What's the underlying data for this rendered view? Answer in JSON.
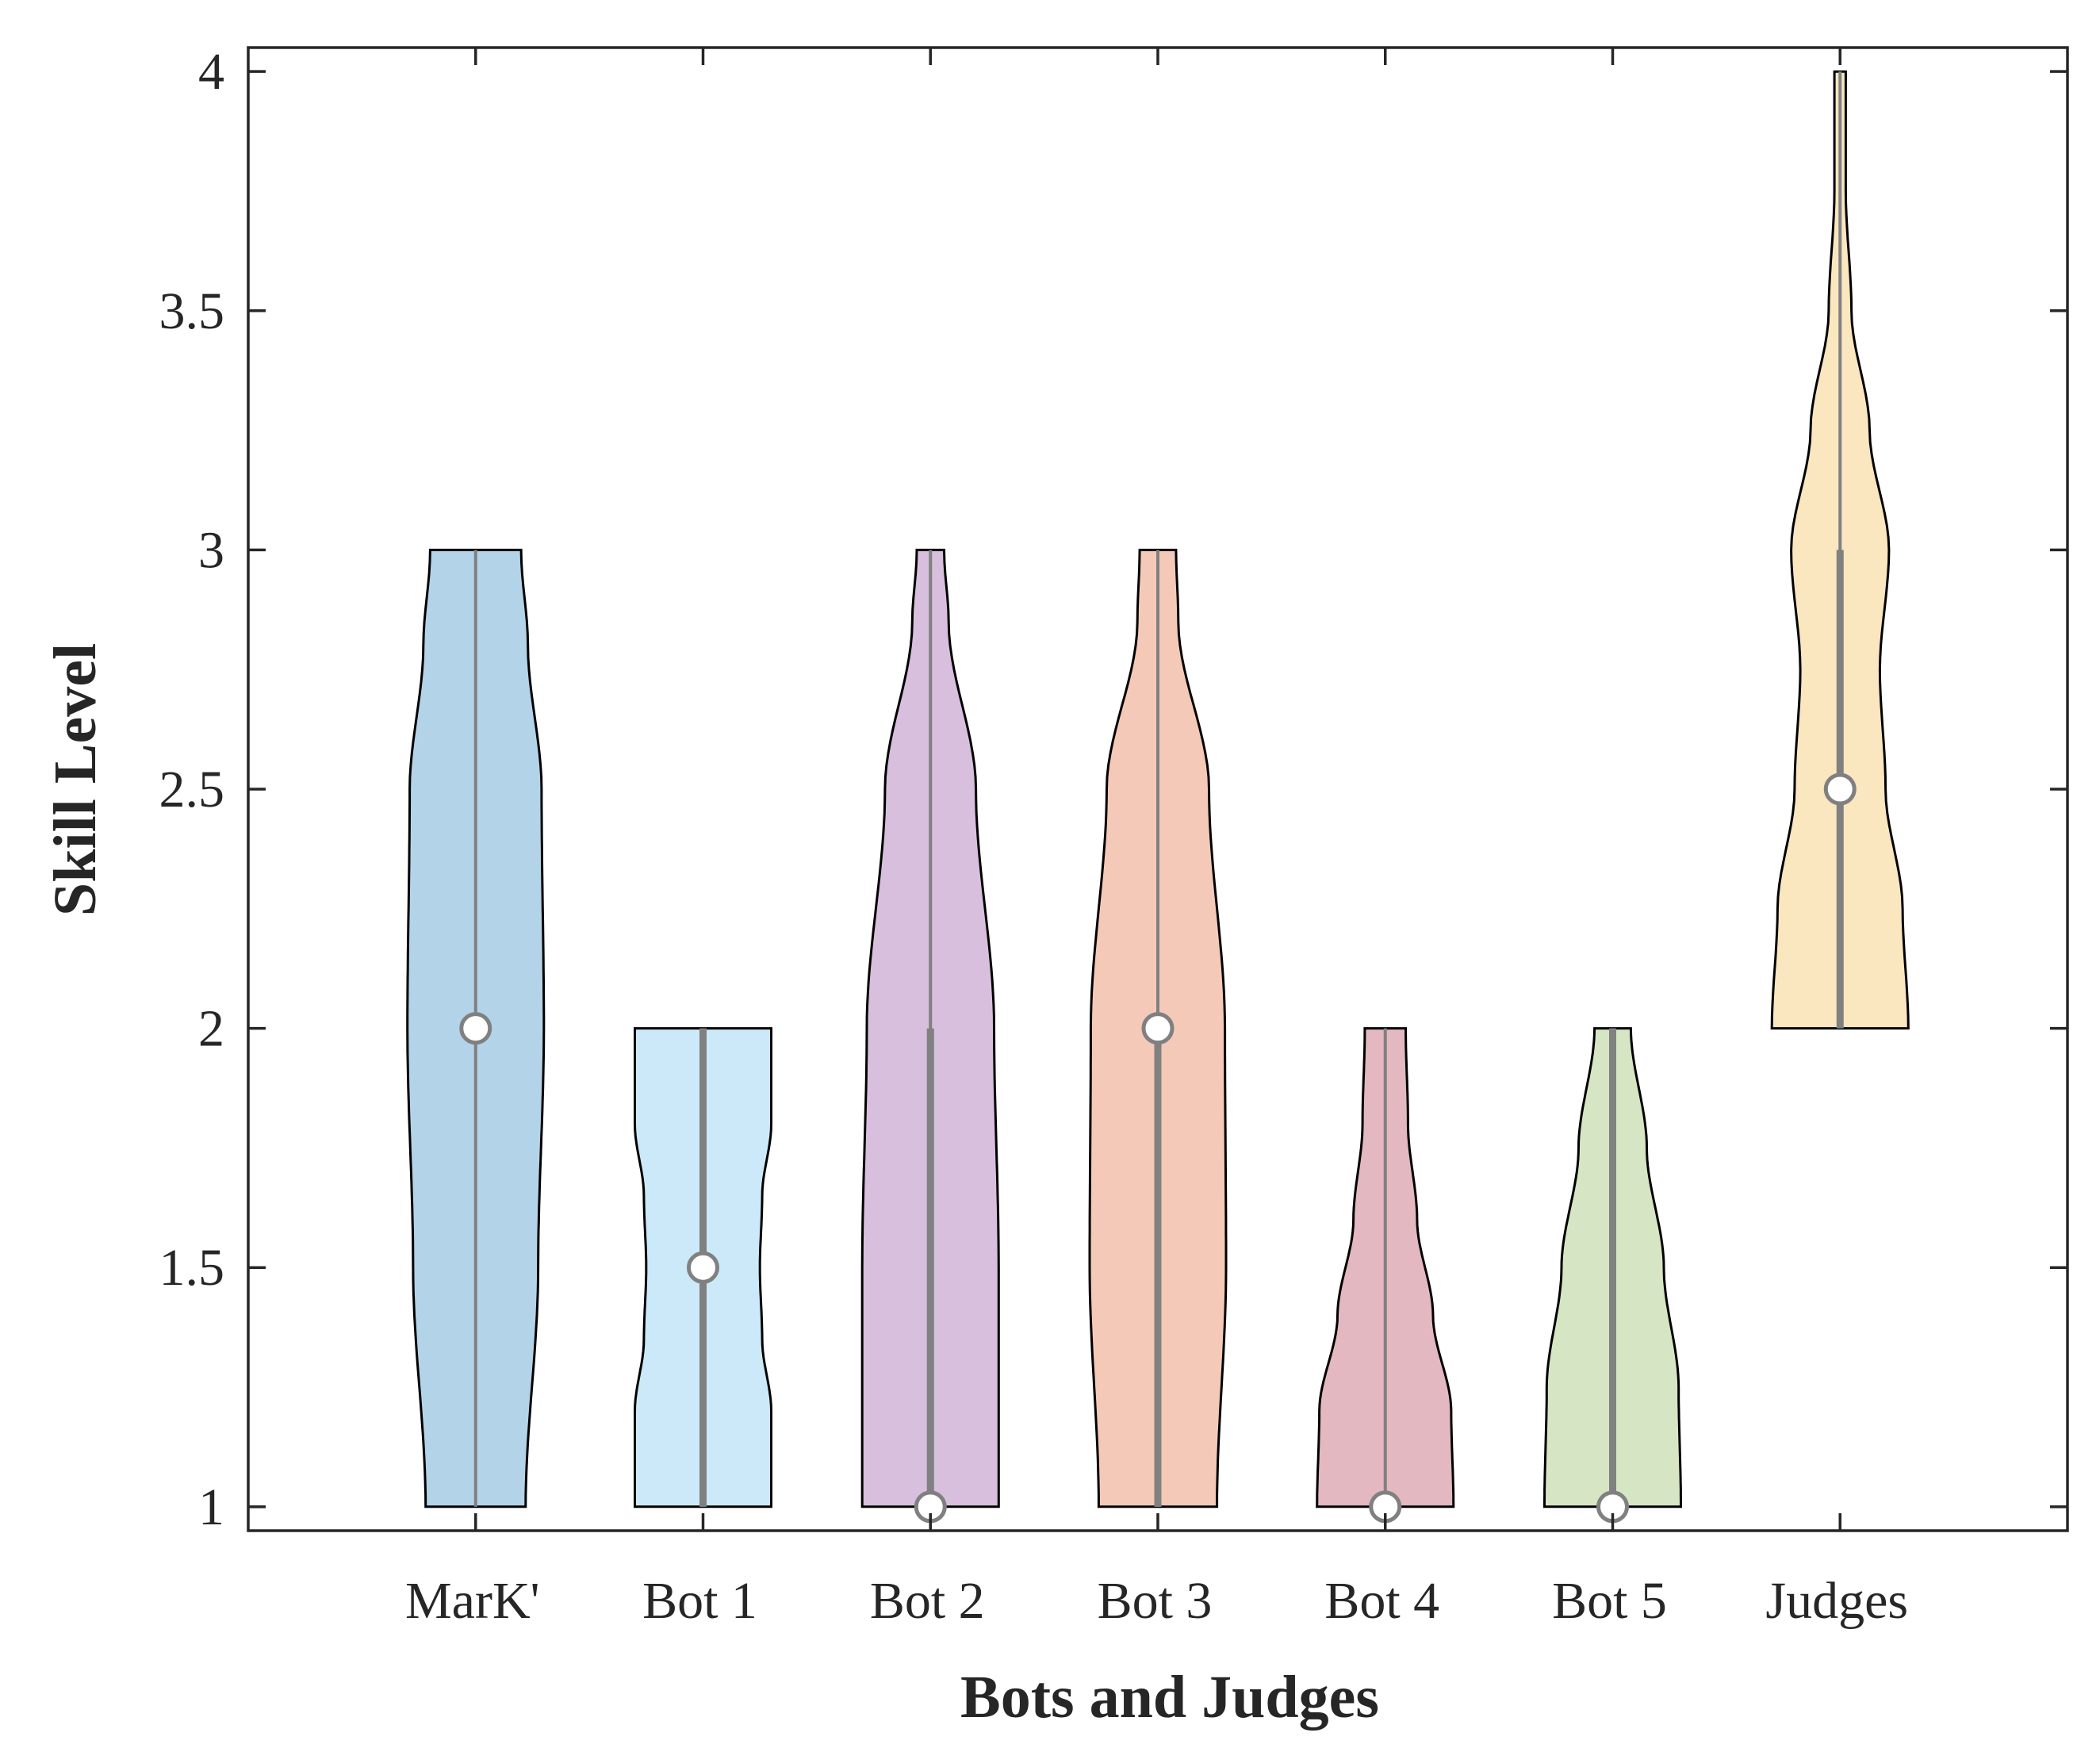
{
  "chart_data": {
    "type": "violin",
    "title": "",
    "xlabel": "Bots and Judges",
    "ylabel": "Skill Level",
    "ylim": [
      0.95,
      4.05
    ],
    "yticks": [
      1,
      1.5,
      2,
      2.5,
      3,
      3.5,
      4
    ],
    "ytick_labels": [
      "1",
      "1.5",
      "2",
      "2.5",
      "3",
      "3.5",
      "4"
    ],
    "grid": false,
    "legend": "none",
    "categories": [
      "MarK'",
      "Bot 1",
      "Bot 2",
      "Bot 3",
      "Bot 4",
      "Bot 5",
      "Judges"
    ],
    "series": [
      {
        "name": "MarK'",
        "color": "#b3d3e9",
        "min": 1,
        "max": 3,
        "median": 2,
        "q1": 2,
        "q3": 2,
        "density": [
          [
            1,
            0.44
          ],
          [
            1.5,
            0.55
          ],
          [
            2,
            0.6
          ],
          [
            2.5,
            0.58
          ],
          [
            2.8,
            0.46
          ],
          [
            3,
            0.4
          ]
        ]
      },
      {
        "name": "Bot 1",
        "color": "#cbe9f8",
        "min": 1,
        "max": 2,
        "median": 1.5,
        "q1": 1,
        "q3": 2,
        "density": [
          [
            1,
            0.6
          ],
          [
            1.2,
            0.6
          ],
          [
            1.35,
            0.52
          ],
          [
            1.5,
            0.5
          ],
          [
            1.65,
            0.52
          ],
          [
            1.8,
            0.6
          ],
          [
            2,
            0.6
          ]
        ]
      },
      {
        "name": "Bot 2",
        "color": "#d8bfdd",
        "min": 1,
        "max": 3,
        "median": 1,
        "q1": 1,
        "q3": 2,
        "density": [
          [
            1,
            0.6
          ],
          [
            1.5,
            0.6
          ],
          [
            2,
            0.56
          ],
          [
            2.5,
            0.4
          ],
          [
            2.85,
            0.16
          ],
          [
            3,
            0.12
          ]
        ]
      },
      {
        "name": "Bot 3",
        "color": "#f4c9b8",
        "min": 1,
        "max": 3,
        "median": 2,
        "q1": 1,
        "q3": 2,
        "density": [
          [
            1,
            0.52
          ],
          [
            1.5,
            0.6
          ],
          [
            2,
            0.59
          ],
          [
            2.5,
            0.45
          ],
          [
            2.85,
            0.18
          ],
          [
            3,
            0.16
          ]
        ]
      },
      {
        "name": "Bot 4",
        "color": "#e3b8c0",
        "min": 1,
        "max": 2,
        "median": 1,
        "q1": 1,
        "q3": 1,
        "density": [
          [
            1,
            0.6
          ],
          [
            1.2,
            0.58
          ],
          [
            1.4,
            0.42
          ],
          [
            1.6,
            0.28
          ],
          [
            1.8,
            0.2
          ],
          [
            2,
            0.18
          ]
        ]
      },
      {
        "name": "Bot 5",
        "color": "#d6e5c3",
        "min": 1,
        "max": 2,
        "median": 1,
        "q1": 1,
        "q3": 2,
        "density": [
          [
            1,
            0.6
          ],
          [
            1.25,
            0.58
          ],
          [
            1.5,
            0.45
          ],
          [
            1.75,
            0.3
          ],
          [
            2,
            0.16
          ]
        ]
      },
      {
        "name": "Judges",
        "color": "#fae6bf",
        "min": 2,
        "max": 4,
        "median": 2.5,
        "q1": 2,
        "q3": 3,
        "density": [
          [
            2,
            0.6
          ],
          [
            2.25,
            0.55
          ],
          [
            2.5,
            0.4
          ],
          [
            2.75,
            0.35
          ],
          [
            3,
            0.43
          ],
          [
            3.25,
            0.26
          ],
          [
            3.5,
            0.1
          ],
          [
            3.75,
            0.05
          ],
          [
            4,
            0.05
          ]
        ]
      }
    ]
  }
}
